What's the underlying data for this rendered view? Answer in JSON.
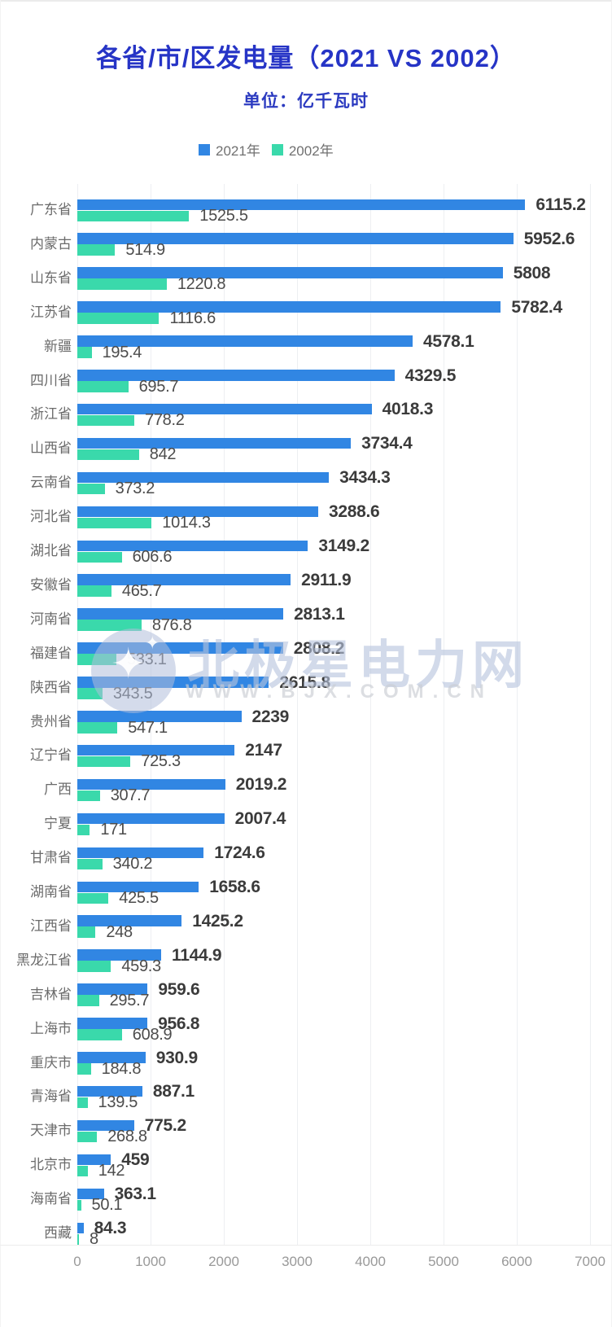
{
  "header": {
    "title": "各省/市/区发电量（2021 VS 2002）",
    "subtitle": "单位：亿千瓦时"
  },
  "watermark": {
    "brand": "北极星电力网",
    "url": "WWW.BJX.COM.CN",
    "star_big": "✦",
    "star_small": "✦"
  },
  "colors": {
    "bar_2021": "#3186e3",
    "bar_2002": "#3ad9ab",
    "title_blue": "#2634c6",
    "gridline": "#edeff2",
    "value_2021_text": "#3b3b3b",
    "value_2002_text": "#4c4c4c",
    "category_text": "#6b6b6b",
    "axis_text": "#999999"
  },
  "chart_data": {
    "type": "bar",
    "orientation": "horizontal",
    "title": "各省/市/区发电量（2021 VS 2002）",
    "unit": "亿千瓦时",
    "legend_position": "top",
    "grid": true,
    "xlim": [
      0,
      7000
    ],
    "x_ticks": [
      0,
      1000,
      2000,
      3000,
      4000,
      5000,
      6000,
      7000
    ],
    "categories": [
      "广东省",
      "内蒙古",
      "山东省",
      "江苏省",
      "新疆",
      "四川省",
      "浙江省",
      "山西省",
      "云南省",
      "河北省",
      "湖北省",
      "安徽省",
      "河南省",
      "福建省",
      "陕西省",
      "贵州省",
      "辽宁省",
      "广西",
      "宁夏",
      "甘肃省",
      "湖南省",
      "江西省",
      "黑龙江省",
      "吉林省",
      "上海市",
      "重庆市",
      "青海省",
      "天津市",
      "北京市",
      "海南省",
      "西藏"
    ],
    "series": [
      {
        "name": "2021年",
        "color": "#3186e3",
        "values": [
          6115.2,
          5952.6,
          5808,
          5782.4,
          4578.1,
          4329.5,
          4018.3,
          3734.4,
          3434.3,
          3288.6,
          3149.2,
          2911.9,
          2813.1,
          2808.2,
          2615.8,
          2239,
          2147,
          2019.2,
          2007.4,
          1724.6,
          1658.6,
          1425.2,
          1144.9,
          959.6,
          956.8,
          930.9,
          887.1,
          775.2,
          459,
          363.1,
          84.3
        ]
      },
      {
        "name": "2002年",
        "color": "#3ad9ab",
        "values": [
          1525.5,
          514.9,
          1220.8,
          1116.6,
          195.4,
          695.7,
          778.2,
          842,
          373.2,
          1014.3,
          606.6,
          465.7,
          876.8,
          533.1,
          343.5,
          547.1,
          725.3,
          307.7,
          171,
          340.2,
          425.5,
          248,
          459.3,
          295.7,
          608.9,
          184.8,
          139.5,
          268.8,
          142,
          50.1,
          8
        ]
      }
    ]
  }
}
